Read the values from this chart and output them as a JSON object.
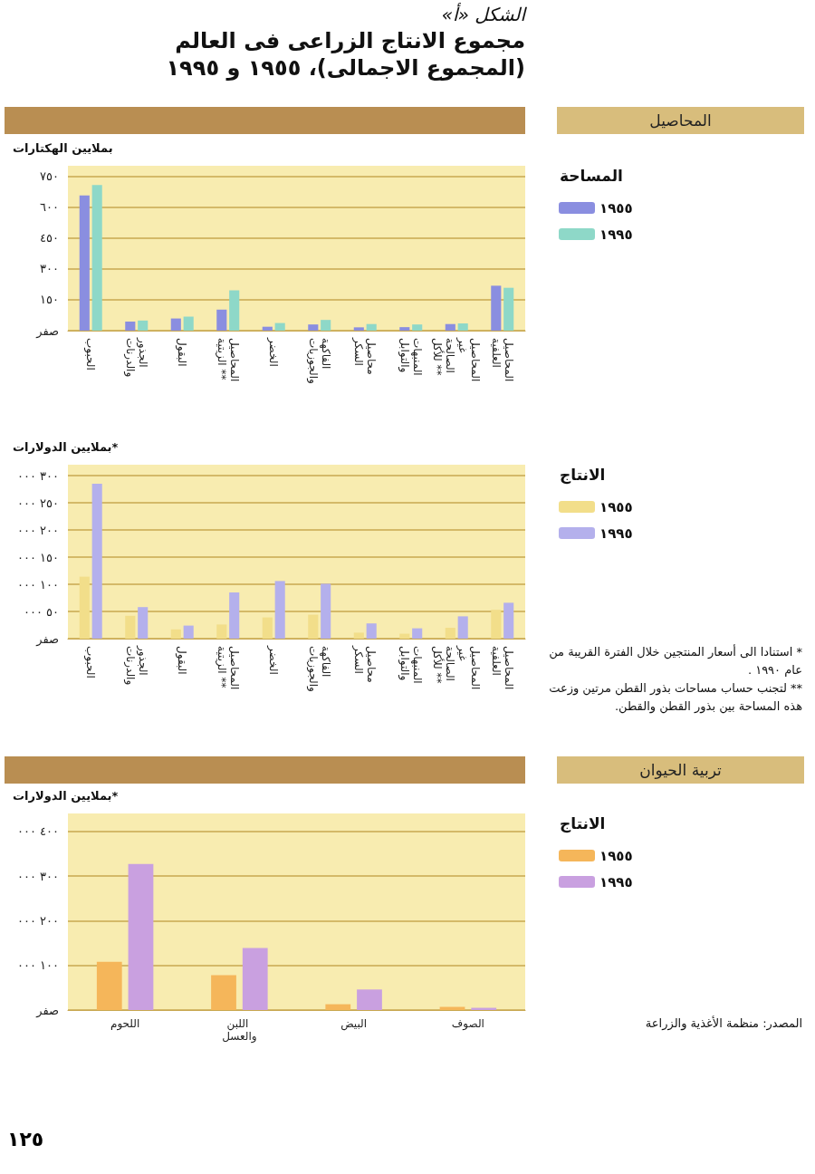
{
  "chart_data": [
    {
      "type": "bar",
      "title": "الشكل «أ»",
      "subtitle": "مجموع الانتاج الزراعى فى العالم (المجموع الاجمالى)، ١٩٥٥ و ١٩٩٥",
      "annotations": [
        "المحاصيل"
      ],
      "ylabel": "بملايين الهكتارات",
      "legend_title": "المساحة",
      "categories": [
        "الحبوب",
        "الجذور والدرنات",
        "البقول",
        "المحاصيل الزيتية **",
        "الخضر",
        "الفاكهة والجوزيات",
        "محاصيل السكر",
        "المنبهات والتوابل",
        "المحاصيل غير الصالحة للأكل **",
        "المحاصيل العلفية"
      ],
      "series": [
        {
          "name": "١٩٥٥",
          "color": "#8a8ee0",
          "values": [
            656,
            44,
            59,
            102,
            19,
            30,
            16,
            17,
            32,
            218
          ]
        },
        {
          "name": "١٩٩٥",
          "color": "#8ed8c8",
          "values": [
            707,
            49,
            68,
            196,
            37,
            52,
            32,
            30,
            35,
            208
          ]
        }
      ],
      "ylim": [
        0,
        800
      ],
      "yticks": [
        {
          "value": 0,
          "label": "صفر"
        },
        {
          "value": 150,
          "label": "١٥٠"
        },
        {
          "value": 300,
          "label": "٣٠٠"
        },
        {
          "value": 450,
          "label": "٤٥٠"
        },
        {
          "value": 600,
          "label": "٦٠٠"
        },
        {
          "value": 750,
          "label": "٧٥٠"
        }
      ],
      "grid": "y",
      "legend": "right"
    },
    {
      "type": "bar",
      "annotations": [
        "* استنادا الى أسعار المنتجين خلال الفترة القريبة من عام ١٩٩٠ .",
        "** لتجنب حساب مساحات بذور القطن مرتين وزعت هذه المساحة بين بذور القطن والقطن."
      ],
      "ylabel": "بملايين الدولارات*",
      "legend_title": "الانتاج",
      "categories": [
        "الحبوب",
        "الجذور والدرنات",
        "البقول",
        "المحاصيل الزيتية **",
        "الخضر",
        "الفاكهة والجوزيات",
        "محاصيل السكر",
        "المنبهات والتوابل",
        "المحاصيل غير الصالحة للأكل **",
        "المحاصيل العلفية"
      ],
      "series": [
        {
          "name": "١٩٥٥",
          "color": "#f2de8a",
          "values": [
            114000,
            42000,
            17000,
            26000,
            39000,
            44000,
            11000,
            9000,
            20000,
            53000
          ]
        },
        {
          "name": "١٩٩٥",
          "color": "#b4b0ec",
          "values": [
            285000,
            58000,
            24000,
            85000,
            106000,
            101000,
            28000,
            19000,
            41000,
            66000
          ]
        }
      ],
      "ylim": [
        0,
        320000
      ],
      "yticks": [
        {
          "value": 0,
          "label": "صفر"
        },
        {
          "value": 50000,
          "label": "٥٠ ٠٠٠"
        },
        {
          "value": 100000,
          "label": "١٠٠ ٠٠٠"
        },
        {
          "value": 150000,
          "label": "١٥٠ ٠٠٠"
        },
        {
          "value": 200000,
          "label": "٢٠٠ ٠٠٠"
        },
        {
          "value": 250000,
          "label": "٢٥٠ ٠٠٠"
        },
        {
          "value": 300000,
          "label": "٣٠٠ ٠٠٠"
        }
      ],
      "grid": "y",
      "legend": "right"
    },
    {
      "type": "bar",
      "annotations": [
        "تربية الحيوان",
        "المصدر: منظمة الأغذية والزراعة",
        "١٢٥"
      ],
      "ylabel": "بملايين الدولارات*",
      "legend_title": "الانتاج",
      "categories": [
        "اللحوم",
        "اللبن والعسل",
        "البيض",
        "الصوف"
      ],
      "series": [
        {
          "name": "١٩٥٥",
          "color": "#f5b65a",
          "values": [
            108000,
            78000,
            13000,
            7000
          ]
        },
        {
          "name": "١٩٩٥",
          "color": "#c9a0e0",
          "values": [
            327000,
            139000,
            46000,
            5000
          ]
        }
      ],
      "ylim": [
        0,
        440000
      ],
      "yticks": [
        {
          "value": 0,
          "label": "صفر"
        },
        {
          "value": 100000,
          "label": "١٠٠ ٠٠٠"
        },
        {
          "value": 200000,
          "label": "٢٠٠ ٠٠٠"
        },
        {
          "value": 300000,
          "label": "٣٠٠ ٠٠٠"
        },
        {
          "value": 400000,
          "label": "٤٠٠ ٠٠٠"
        }
      ],
      "grid": "y",
      "legend": "right"
    }
  ]
}
